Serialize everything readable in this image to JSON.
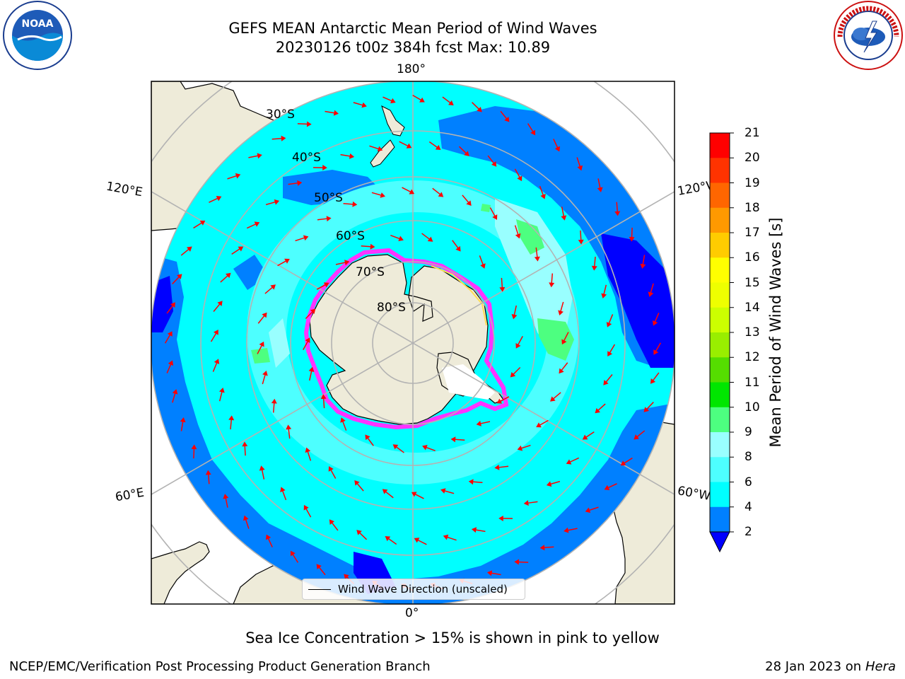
{
  "header": {
    "title_line1": "GEFS MEAN Antarctic Mean Period of Wind Waves",
    "title_line2": "20230126 t00z 384h fcst   Max: 10.89"
  },
  "logos": {
    "left": "noaa-logo",
    "right": "national-weather-service-logo"
  },
  "map": {
    "projection": "south polar stereographic",
    "longitude_labels": {
      "top": "180°",
      "bottom": "0°",
      "upper_left": "120°E",
      "upper_right": "120°W",
      "lower_left": "60°E",
      "lower_right": "60°W"
    },
    "latitude_labels": [
      "30°S",
      "40°S",
      "50°S",
      "60°S",
      "70°S",
      "80°S"
    ],
    "legend_label": "Wind Wave Direction (unscaled)",
    "colors": {
      "ocean_base": "#00ffff",
      "land": "#eeebd9",
      "arrows": "#ff0000",
      "grid": "#b3b3b3",
      "sea_ice": "#ff33ff"
    }
  },
  "colorbar": {
    "label": "Mean Period of Wind Waves [s]",
    "ticks": [
      "2",
      "4",
      "6",
      "8",
      "9",
      "10",
      "11",
      "12",
      "13",
      "14",
      "15",
      "16",
      "17",
      "18",
      "19",
      "20",
      "21"
    ],
    "colors": [
      "#0000ff",
      "#0080ff",
      "#00ffff",
      "#4dffff",
      "#99ffff",
      "#4dff80",
      "#00e600",
      "#55dd00",
      "#99ee00",
      "#ccff00",
      "#eeff00",
      "#ffff00",
      "#ffcc00",
      "#ff9900",
      "#ff6600",
      "#ff3300",
      "#ff0000"
    ],
    "extend": "min"
  },
  "caption": "Sea Ice Concentration > 15% is shown in pink to yellow",
  "footer": {
    "left": "NCEP/EMC/Verification Post Processing Product Generation Branch",
    "right_date": "28 Jan 2023 on ",
    "right_host": "Hera"
  }
}
